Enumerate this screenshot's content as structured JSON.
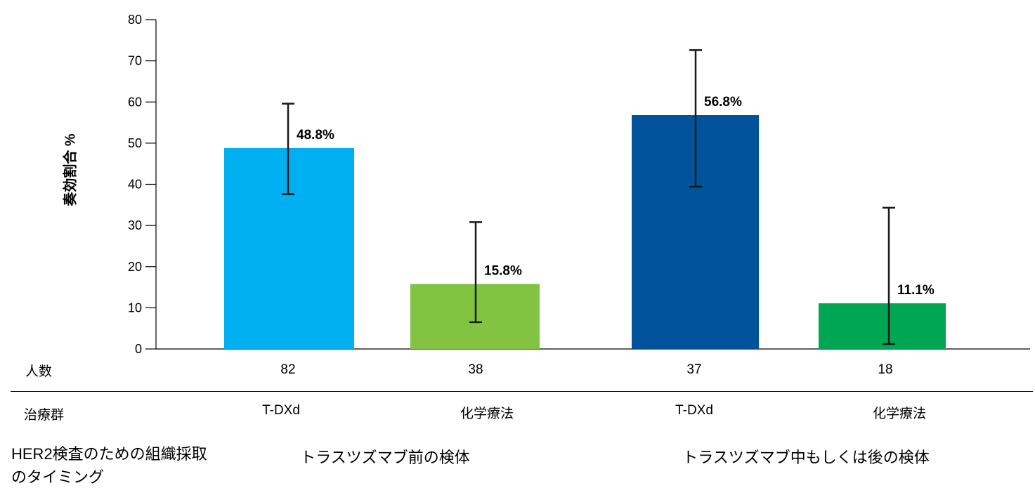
{
  "chart_data": {
    "type": "bar",
    "ylabel": "奏効割合 %",
    "ylim": [
      0,
      80
    ],
    "yticks": [
      0,
      10,
      20,
      30,
      40,
      50,
      60,
      70,
      80
    ],
    "grid": false,
    "bars": [
      {
        "value": 48.8,
        "label": "48.8%",
        "ci": [
          37.6,
          59.6
        ],
        "color": "#00b0f0",
        "n": "82",
        "treatment": "T-DXd"
      },
      {
        "value": 15.8,
        "label": "15.8%",
        "ci": [
          6.5,
          30.8
        ],
        "color": "#82c341",
        "n": "38",
        "treatment": "化学療法"
      },
      {
        "value": 56.8,
        "label": "56.8%",
        "ci": [
          39.4,
          72.6
        ],
        "color": "#00529b",
        "n": "37",
        "treatment": "T-DXd"
      },
      {
        "value": 11.1,
        "label": "11.1%",
        "ci": [
          1.2,
          34.3
        ],
        "color": "#00a651",
        "n": "18",
        "treatment": "化学療法"
      }
    ],
    "groups": [
      {
        "label": "トラスツズマブ前の検体",
        "bars": [
          0,
          1
        ]
      },
      {
        "label": "トラスツズマブ中もしくは後の検体",
        "bars": [
          2,
          3
        ]
      }
    ]
  },
  "table": {
    "n_row_label": "人数",
    "treatment_row_label": "治療群",
    "timing_label": "HER2検査のための組織採取\nのタイミング"
  }
}
